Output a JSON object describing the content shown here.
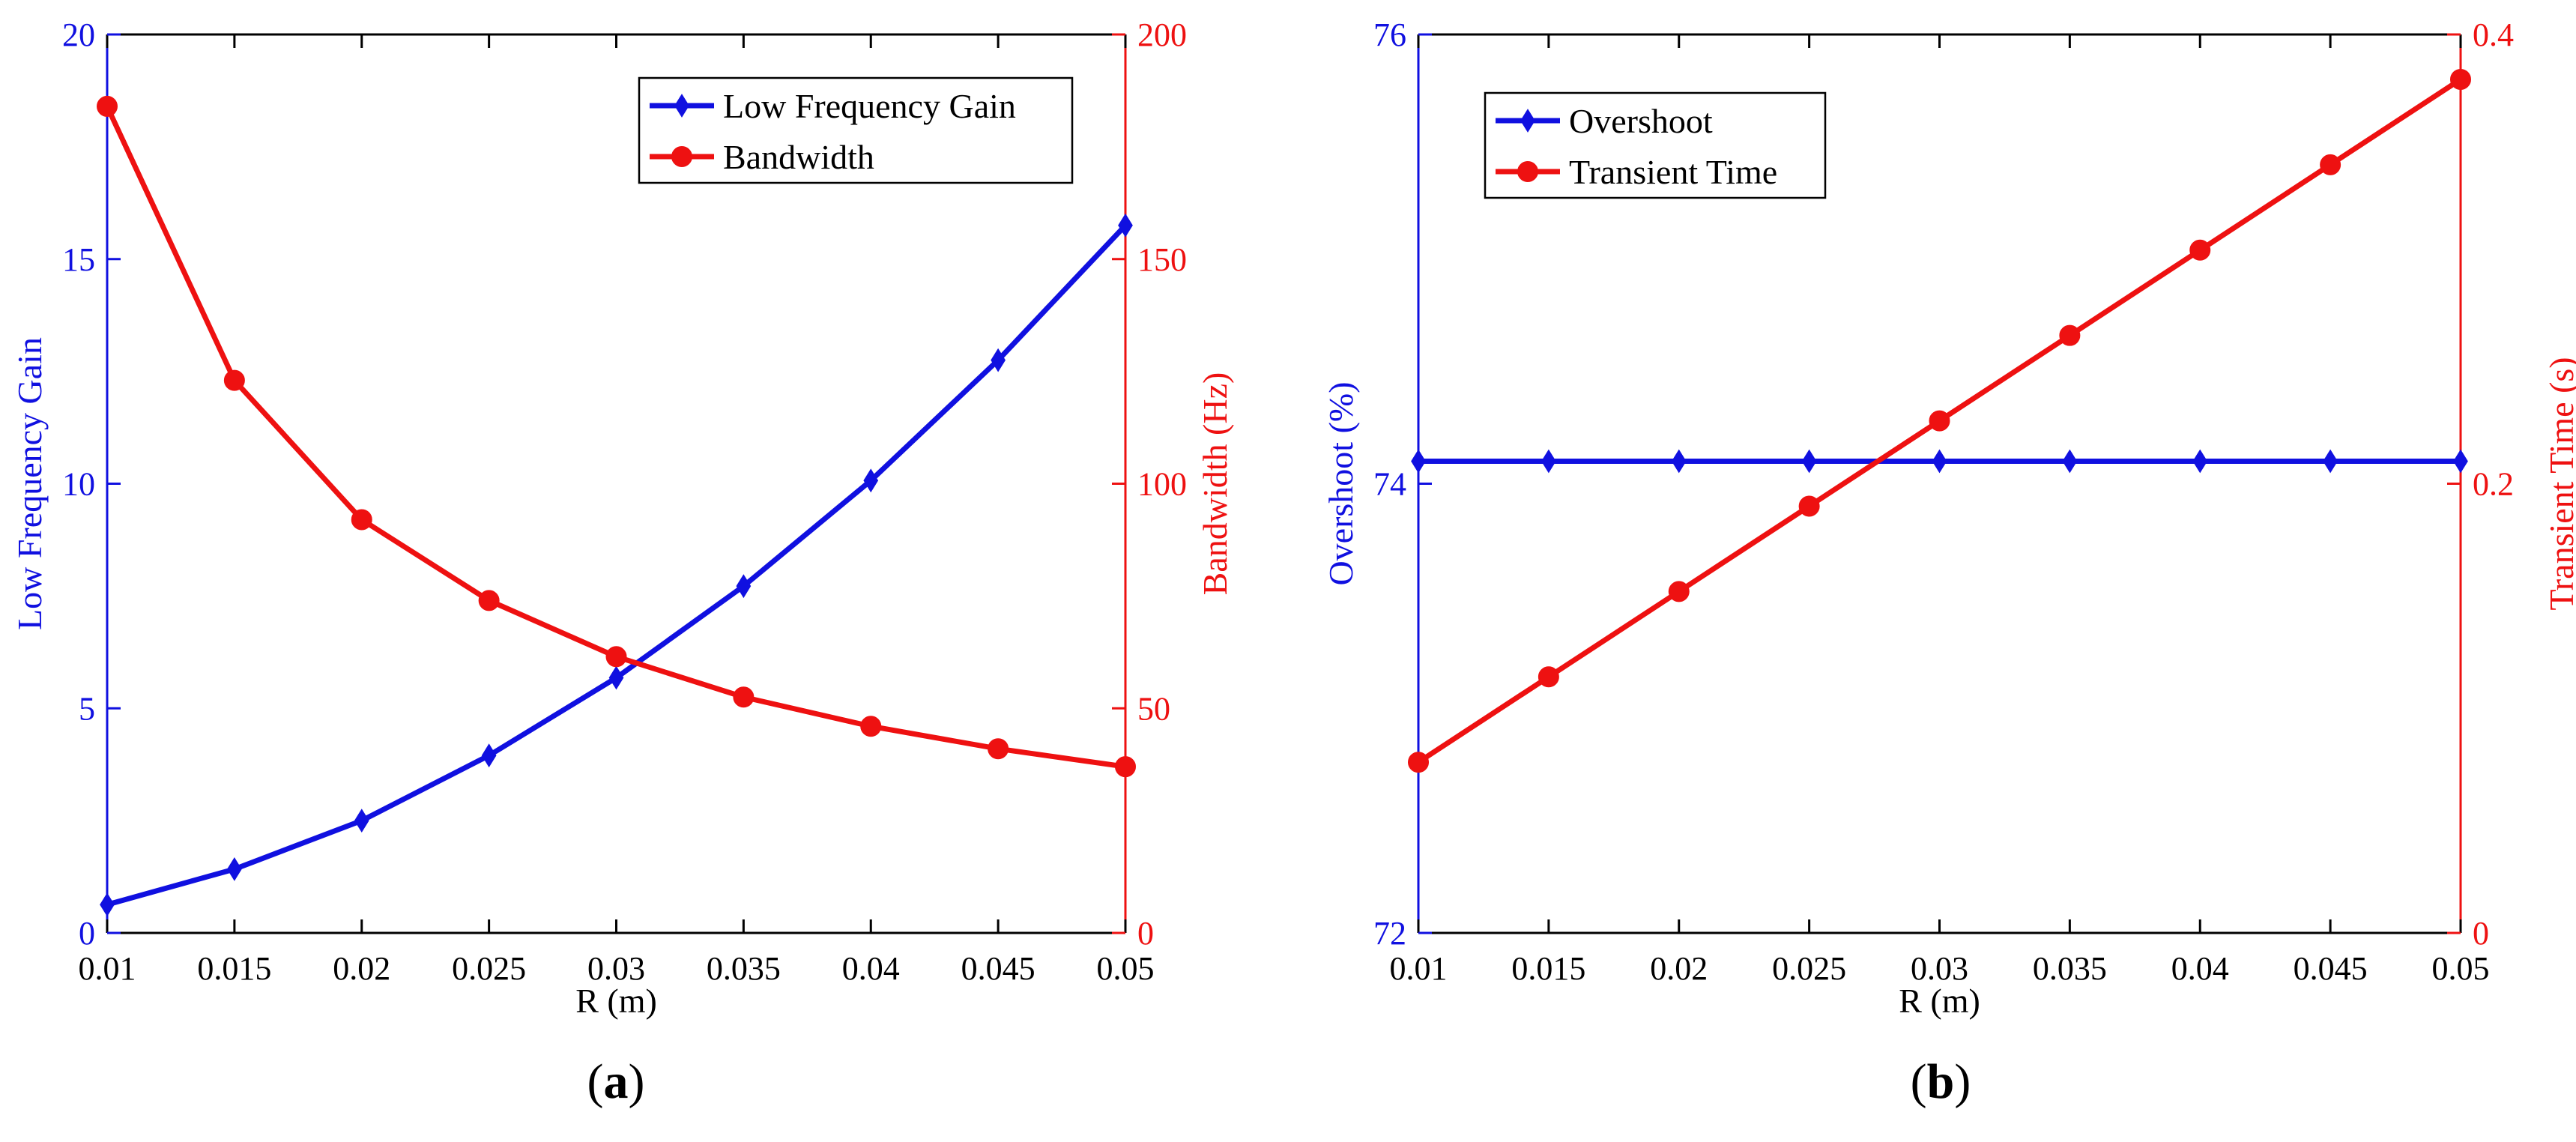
{
  "chart_data": [
    {
      "type": "line",
      "panel_label": "(a)",
      "panel_label_letter": "a",
      "x": [
        0.01,
        0.015,
        0.02,
        0.025,
        0.03,
        0.035,
        0.04,
        0.045,
        0.05
      ],
      "x_tick_labels": [
        "0.01",
        "0.015",
        "0.02",
        "0.025",
        "0.03",
        "0.035",
        "0.04",
        "0.045",
        "0.05"
      ],
      "xlim": [
        0.01,
        0.05
      ],
      "xlabel": "R (m)",
      "ylabel_left": "Low Frequency Gain",
      "ylabel_right": "Bandwidth (Hz)",
      "ylim_left": [
        0,
        20
      ],
      "ylim_right": [
        0,
        200
      ],
      "y_left_ticks": [
        0,
        5,
        10,
        15,
        20
      ],
      "y_left_tick_labels": [
        "0",
        "5",
        "10",
        "15",
        "20"
      ],
      "y_right_ticks": [
        0,
        50,
        100,
        150,
        200
      ],
      "y_right_tick_labels": [
        "0",
        "50",
        "100",
        "150",
        "200"
      ],
      "legend_position": "top-right",
      "series": [
        {
          "name": "Low Frequency Gain",
          "axis": "left",
          "color": "#1010e0",
          "marker": "diamond",
          "values": [
            0.63,
            1.42,
            2.5,
            3.95,
            5.68,
            7.72,
            10.07,
            12.75,
            15.75
          ]
        },
        {
          "name": "Bandwidth",
          "axis": "right",
          "color": "#ee1111",
          "marker": "circle",
          "values": [
            184,
            123,
            92,
            74,
            61.5,
            52.5,
            46,
            41,
            37
          ]
        }
      ]
    },
    {
      "type": "line",
      "panel_label": "(b)",
      "panel_label_letter": "b",
      "x": [
        0.01,
        0.015,
        0.02,
        0.025,
        0.03,
        0.035,
        0.04,
        0.045,
        0.05
      ],
      "x_tick_labels": [
        "0.01",
        "0.015",
        "0.02",
        "0.025",
        "0.03",
        "0.035",
        "0.04",
        "0.045",
        "0.05"
      ],
      "xlim": [
        0.01,
        0.05
      ],
      "xlabel": "R (m)",
      "ylabel_left": "Overshoot (%)",
      "ylabel_right": "Transient Time (s)",
      "ylim_left": [
        72,
        76
      ],
      "ylim_right": [
        0,
        0.4
      ],
      "y_left_ticks": [
        72,
        74,
        76
      ],
      "y_left_tick_labels": [
        "72",
        "74",
        "76"
      ],
      "y_right_ticks": [
        0,
        0.2,
        0.4
      ],
      "y_right_tick_labels": [
        "0",
        "0.2",
        "0.4"
      ],
      "legend_position": "top-left",
      "series": [
        {
          "name": "Overshoot",
          "axis": "left",
          "color": "#1010e0",
          "marker": "diamond",
          "values": [
            74.1,
            74.1,
            74.1,
            74.1,
            74.1,
            74.1,
            74.1,
            74.1,
            74.1
          ]
        },
        {
          "name": "Transient Time",
          "axis": "right",
          "color": "#ee1111",
          "marker": "circle",
          "values": [
            0.076,
            0.114,
            0.152,
            0.19,
            0.228,
            0.266,
            0.304,
            0.342,
            0.38
          ]
        }
      ]
    }
  ]
}
